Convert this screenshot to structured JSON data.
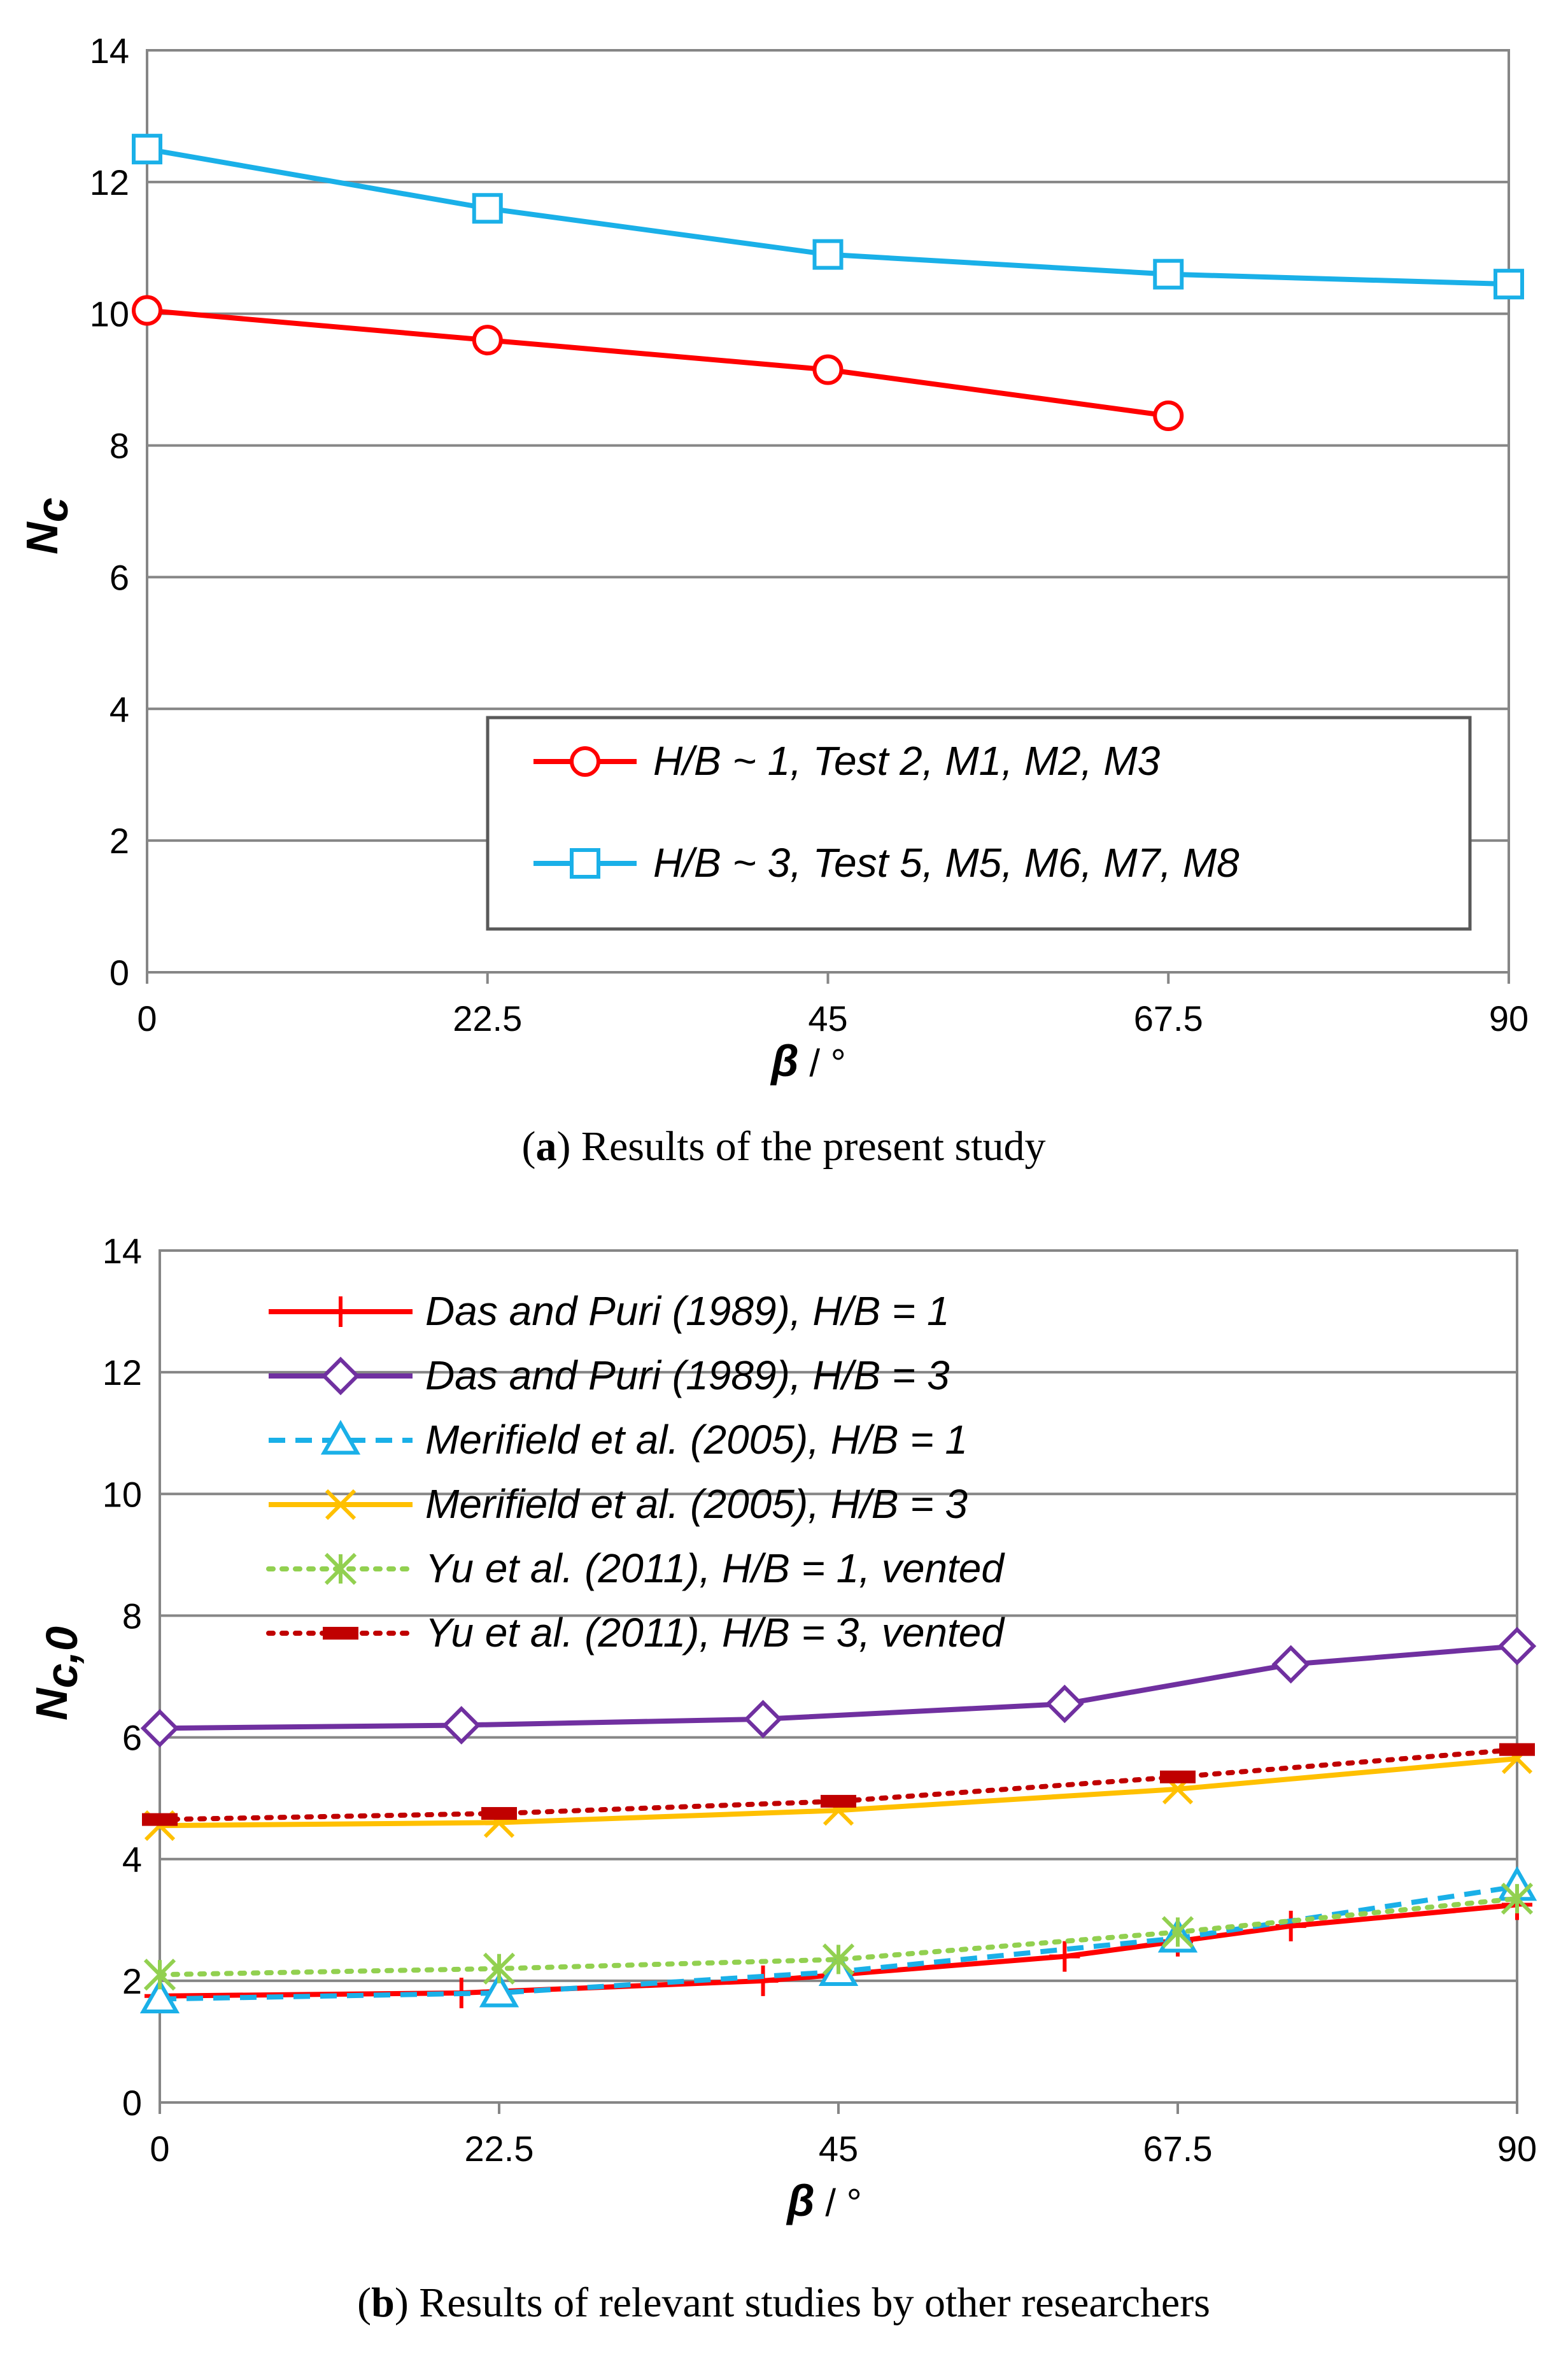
{
  "chart_data": [
    {
      "type": "line",
      "title": "",
      "caption_letter": "a",
      "caption_text": ") Results of the present study",
      "xlabel_symbol": "β",
      "xlabel_unit": " / °",
      "ylabel_main": "N",
      "ylabel_sub": "c",
      "xlim": [
        0,
        90
      ],
      "ylim": [
        0,
        14
      ],
      "x_ticks": [
        0,
        22.5,
        45,
        67.5,
        90
      ],
      "x_tick_labels": [
        "0",
        "22.5",
        "45",
        "67.5",
        "90"
      ],
      "y_ticks": [
        0,
        2,
        4,
        6,
        8,
        10,
        12,
        14
      ],
      "y_tick_labels": [
        "0",
        "2",
        "4",
        "6",
        "8",
        "10",
        "12",
        "14"
      ],
      "legend_position": "bottom-right",
      "series": [
        {
          "name": "H/B ~ 1, Test 2, M1, M2, M3",
          "color": "#ff0000",
          "marker": "circle",
          "dash": "solid",
          "x": [
            0,
            22.5,
            45,
            67.5
          ],
          "y": [
            10.05,
            9.6,
            9.15,
            8.45
          ]
        },
        {
          "name": "H/B ~ 3, Test 5, M5, M6, M7, M8",
          "color": "#1ab0e8",
          "marker": "square",
          "dash": "solid",
          "x": [
            0,
            22.5,
            45,
            67.5,
            90
          ],
          "y": [
            12.5,
            11.6,
            10.9,
            10.6,
            10.45
          ]
        }
      ]
    },
    {
      "type": "line",
      "title": "",
      "caption_letter": "b",
      "caption_text": ") Results of relevant studies by other researchers",
      "xlabel_symbol": "β",
      "xlabel_unit": " / °",
      "ylabel_main": "N",
      "ylabel_sub": "c,0",
      "xlim": [
        0,
        90
      ],
      "ylim": [
        0,
        14
      ],
      "x_ticks": [
        0,
        22.5,
        45,
        67.5,
        90
      ],
      "x_tick_labels": [
        "0",
        "22.5",
        "45",
        "67.5",
        "90"
      ],
      "y_ticks": [
        0,
        2,
        4,
        6,
        8,
        10,
        12,
        14
      ],
      "y_tick_labels": [
        "0",
        "2",
        "4",
        "6",
        "8",
        "10",
        "12",
        "14"
      ],
      "legend_position": "top-left",
      "series": [
        {
          "name": "Das and Puri (1989), H/B = 1",
          "color": "#ff0000",
          "marker": "plus",
          "dash": "solid",
          "x": [
            0,
            20,
            40,
            60,
            67.5,
            75,
            90
          ],
          "y": [
            1.75,
            1.8,
            2.0,
            2.4,
            2.65,
            2.9,
            3.25
          ]
        },
        {
          "name": "Das and Puri (1989), H/B = 3",
          "color": "#7030a0",
          "marker": "diamond",
          "dash": "solid",
          "x": [
            0,
            20,
            40,
            60,
            75,
            90
          ],
          "y": [
            6.15,
            6.2,
            6.3,
            6.55,
            7.2,
            7.5
          ]
        },
        {
          "name": "Merifield et al. (2005), H/B = 1",
          "color": "#1ab0e8",
          "marker": "triangle",
          "dash": "dashed",
          "x": [
            0,
            22.5,
            45,
            67.5,
            90
          ],
          "y": [
            1.7,
            1.8,
            2.15,
            2.7,
            3.55
          ]
        },
        {
          "name": "Merifield et al. (2005), H/B = 3",
          "color": "#ffc000",
          "marker": "x",
          "dash": "solid",
          "x": [
            0,
            22.5,
            45,
            67.5,
            90
          ],
          "y": [
            4.55,
            4.6,
            4.8,
            5.15,
            5.65
          ]
        },
        {
          "name": "Yu et al. (2011), H/B = 1, vented",
          "color": "#92d050",
          "marker": "asterisk",
          "dash": "dotted",
          "x": [
            0,
            22.5,
            45,
            67.5,
            90
          ],
          "y": [
            2.1,
            2.2,
            2.35,
            2.8,
            3.35
          ]
        },
        {
          "name": "Yu et al. (2011), H/B = 3, vented",
          "color": "#c00000",
          "marker": "dash",
          "dash": "dotted",
          "x": [
            0,
            22.5,
            45,
            67.5,
            90
          ],
          "y": [
            4.65,
            4.75,
            4.95,
            5.35,
            5.8
          ]
        }
      ]
    }
  ]
}
